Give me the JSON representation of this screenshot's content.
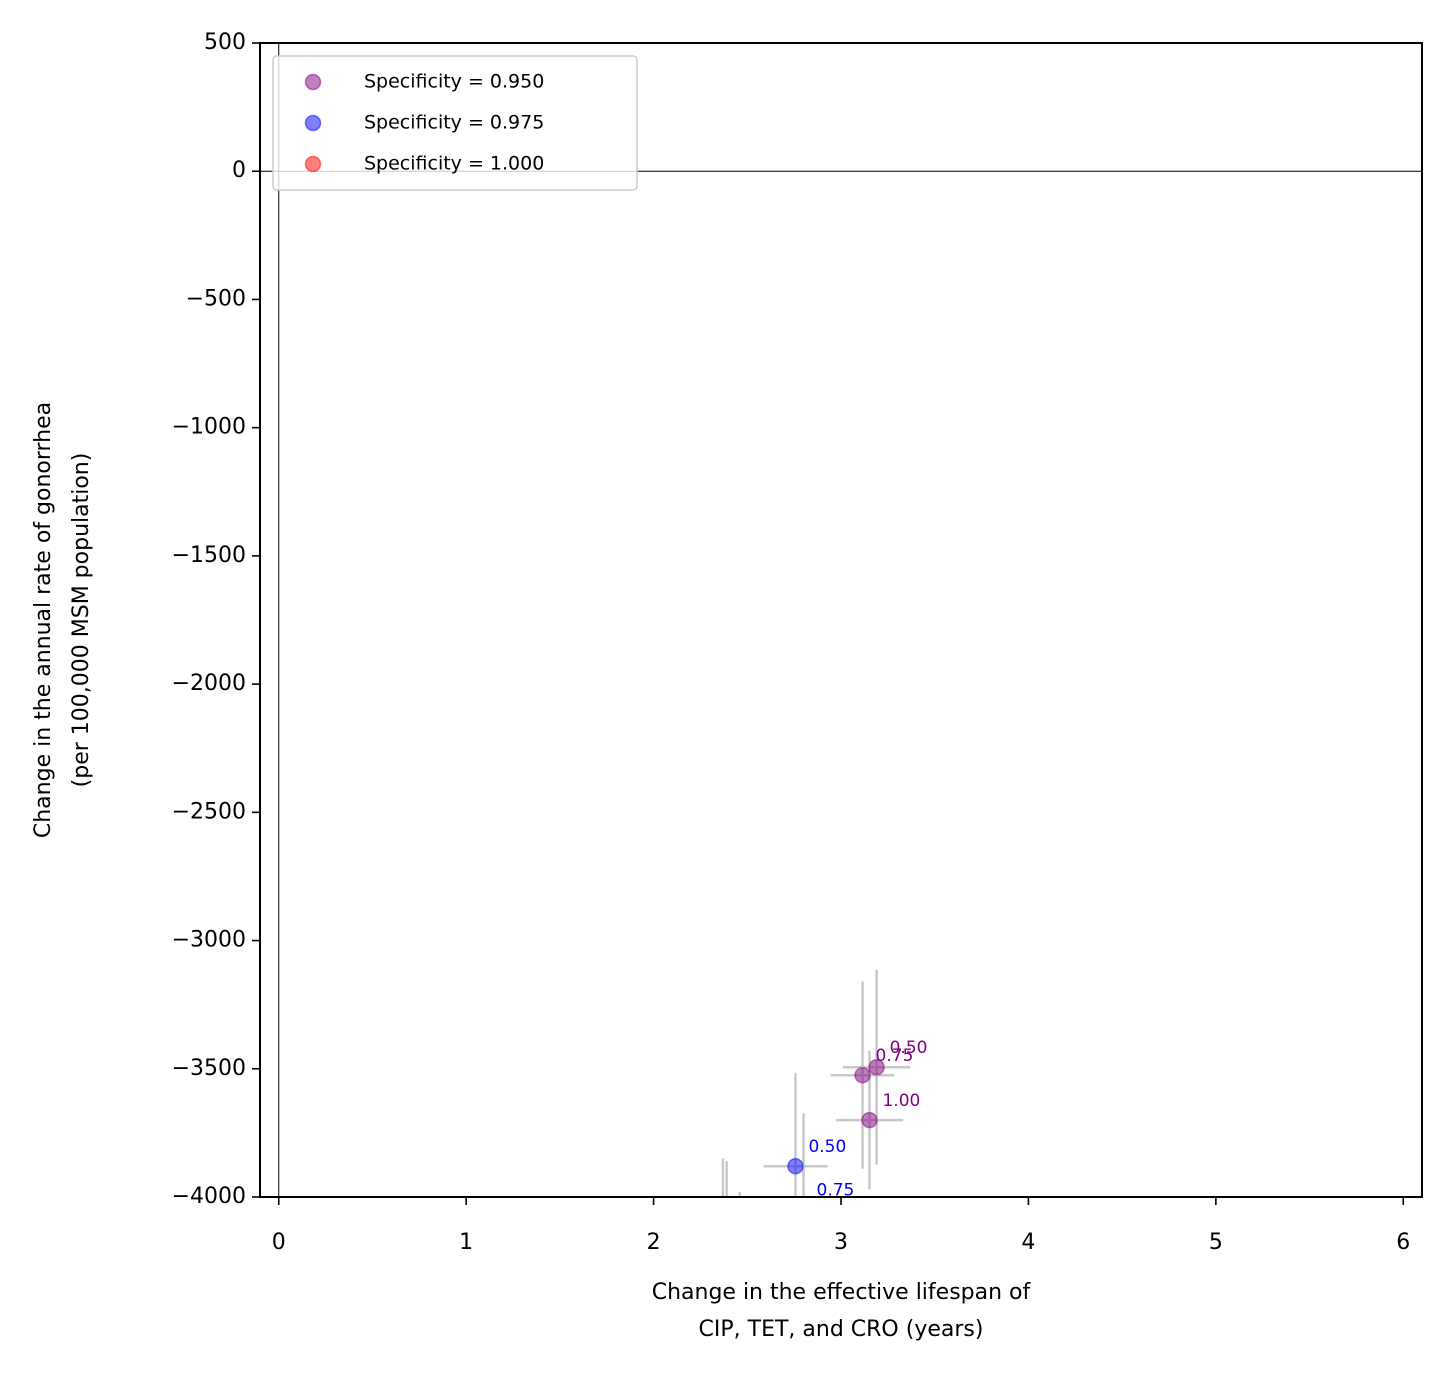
{
  "chart_data": {
    "type": "scatter",
    "xlabel": [
      "Change in the effective lifespan of",
      "CIP, TET, and CRO (years)"
    ],
    "ylabel": [
      "Change in the annual rate of gonorrhea",
      "(per 100,000 MSM population)"
    ],
    "xlim": [
      -0.1,
      6.1
    ],
    "ylim": [
      -4000,
      500
    ],
    "xticks": [
      0,
      1,
      2,
      3,
      4,
      5,
      6
    ],
    "yticks": [
      500,
      0,
      {
        "value": -500,
        "label": "−500"
      },
      {
        "value": -1000,
        "label": "−1000"
      },
      {
        "value": -1500,
        "label": "−1500"
      },
      {
        "value": -2000,
        "label": "−2000"
      },
      {
        "value": -2500,
        "label": "−2500"
      },
      {
        "value": -3000,
        "label": "−3000"
      },
      {
        "value": -3500,
        "label": "−3500"
      },
      {
        "value": -4000,
        "label": "−4000"
      }
    ],
    "reference_lines": {
      "x": 0,
      "y": 0
    },
    "legend": "upper left",
    "errorbar_color": "#c8c8c8",
    "series": [
      {
        "name": "Specificity = 0.950",
        "color": "#800080",
        "x": [
          3.19,
          3.115,
          3.152
        ],
        "values": [
          -3494,
          -3525,
          -3700
        ],
        "xerr": [
          0.18,
          0.17,
          0.18
        ],
        "yerr": [
          380,
          365,
          270
        ],
        "labels": [
          "0.50",
          "0.75",
          "1.00"
        ]
      },
      {
        "name": "Specificity = 0.975",
        "color": "#0000ff",
        "x": [
          2.757,
          2.8
        ],
        "values": [
          -3880,
          -4048
        ],
        "xerr": [
          0.17,
          0.17
        ],
        "yerr": [
          363,
          374
        ],
        "labels": [
          "0.50",
          "0.75"
        ]
      },
      {
        "name": "Specificity = 1.000",
        "color": "#ff0000",
        "x": [
          2.37,
          2.39,
          2.46
        ],
        "values": [
          -4150,
          -4150,
          -4250
        ],
        "xerr": [
          0.1,
          0.1,
          0.1
        ],
        "yerr": [
          300,
          290,
          270
        ],
        "labels": [
          null,
          null,
          null
        ]
      }
    ]
  }
}
